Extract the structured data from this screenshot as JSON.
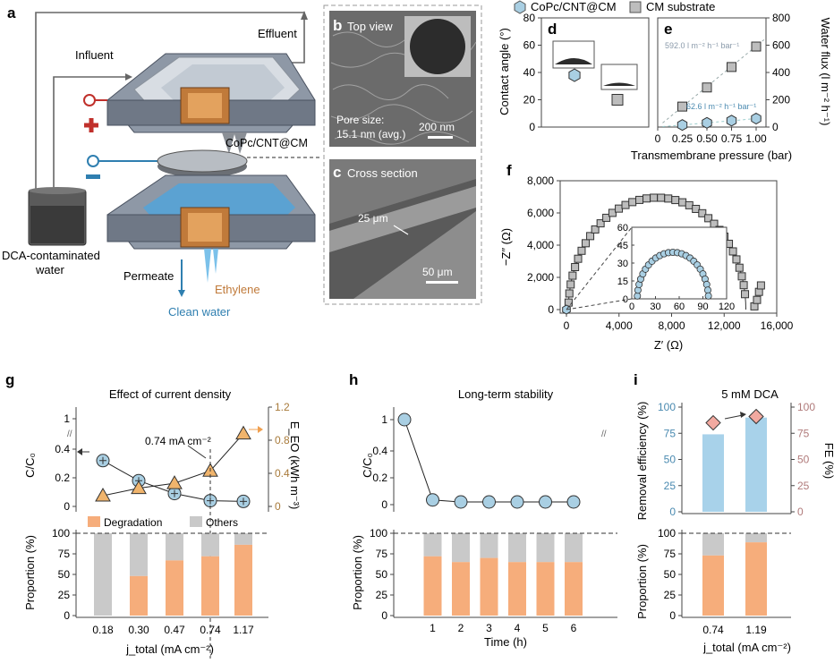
{
  "panels": {
    "a": {
      "letter": "a",
      "influent": "Influent",
      "effluent": "Effluent",
      "membrane": "CoPc/CNT@CM",
      "tank": "DCA-contaminated water",
      "tank_line1": "DCA-contaminated",
      "tank_line2": "water",
      "permeate": "Permeate",
      "ethylene": "Ethylene",
      "clean": "Clean water"
    },
    "b": {
      "letter": "b",
      "title": "Top view",
      "pore1": "Pore size:",
      "pore2": "15.1 nm (avg.)",
      "scale": "200 nm"
    },
    "c": {
      "letter": "c",
      "title": "Cross section",
      "thickness": "25 μm",
      "scale": "50 μm"
    },
    "d": {
      "letter": "d"
    },
    "e": {
      "letter": "e",
      "slope_high": "592.0 l m⁻² h⁻¹ bar⁻¹",
      "slope_low": "62.6 l m⁻² h⁻¹ bar⁻¹"
    },
    "f": {
      "letter": "f"
    },
    "g": {
      "letter": "g",
      "title": "Effect of current density",
      "annotation": "0.74 mA cm⁻²"
    },
    "h": {
      "letter": "h",
      "title": "Long-term stability"
    },
    "i": {
      "letter": "i",
      "title": "5 mM DCA"
    }
  },
  "legend_top": {
    "copc": "CoPc/CNT@CM",
    "cm": "CM substrate"
  },
  "legend_bottom": {
    "degradation": "Degradation",
    "others": "Others"
  },
  "colors": {
    "blue_marker": "#a9cfe3",
    "grey_marker": "#bdbdbd",
    "orange_bar": "#f6ad7b",
    "grey_bar": "#c9c9c9",
    "tan_marker": "#f0b46c",
    "pink_marker": "#f2a9a0",
    "light_blue_bar": "#a8d2ea"
  },
  "chart_data": [
    {
      "id": "d",
      "type": "scatter",
      "ylabel": "Contact angle (°)",
      "ylim": [
        0,
        80
      ],
      "yticks": [
        "0",
        "20",
        "40",
        "60",
        "80"
      ],
      "series": [
        {
          "name": "CoPc/CNT@CM",
          "values": [
            38
          ]
        },
        {
          "name": "CM substrate",
          "values": [
            20
          ]
        }
      ]
    },
    {
      "id": "e",
      "type": "scatter",
      "xlabel": "Transmembrane pressure (bar)",
      "ylabel": "Water flux (l m⁻² h⁻¹)",
      "xlim": [
        0,
        1.1
      ],
      "ylim": [
        0,
        800
      ],
      "xticks": [
        "0",
        "0.25",
        "0.50",
        "0.75",
        "1.00"
      ],
      "yticks": [
        "0",
        "200",
        "400",
        "600",
        "800"
      ],
      "series": [
        {
          "name": "CM substrate",
          "x": [
            0.25,
            0.5,
            0.75,
            1.0
          ],
          "y": [
            150,
            290,
            440,
            590
          ]
        },
        {
          "name": "CoPc/CNT@CM",
          "x": [
            0.25,
            0.5,
            0.75,
            1.0
          ],
          "y": [
            15,
            31,
            47,
            62
          ]
        }
      ]
    },
    {
      "id": "f",
      "type": "scatter",
      "xlabel": "Z′ (Ω)",
      "ylabel": "−Z″ (Ω)",
      "xlim": [
        0,
        16000
      ],
      "ylim": [
        0,
        8000
      ],
      "xticks": [
        "0",
        "4,000",
        "8,000",
        "12,000",
        "16,000"
      ],
      "yticks": [
        "0",
        "2,000",
        "4,000",
        "6,000",
        "8,000"
      ],
      "inset": {
        "xticks": [
          "0",
          "30",
          "60",
          "90",
          "120"
        ],
        "yticks": [
          "0",
          "15",
          "30",
          "45",
          "60"
        ],
        "xlim": [
          0,
          120
        ],
        "ylim": [
          0,
          60
        ]
      }
    },
    {
      "id": "g",
      "type": "line",
      "categories": [
        "0.18",
        "0.30",
        "0.47",
        "0.74",
        "1.17"
      ],
      "xlabel": "j_total (mA cm⁻²)",
      "ylabel_top": "C/C₀",
      "ylabel_right": "E_EO (kWh m⁻³)",
      "ylabel_bottom": "Proportion (%)",
      "yticks_top": [
        "0",
        "0.2",
        "0.4",
        "1"
      ],
      "yticks_right": [
        "0",
        "0.4",
        "0.8",
        "1.2"
      ],
      "yticks_bottom": [
        "0",
        "25",
        "50",
        "75",
        "100"
      ],
      "series": [
        {
          "name": "C/C0",
          "values": [
            0.32,
            0.18,
            0.09,
            0.04,
            0.035
          ]
        },
        {
          "name": "EEO",
          "values": [
            0.13,
            0.22,
            0.28,
            0.43,
            0.88
          ]
        },
        {
          "name": "Degradation",
          "values": [
            0,
            48,
            67,
            72,
            86
          ]
        }
      ]
    },
    {
      "id": "h",
      "type": "line",
      "categories": [
        "0",
        "1",
        "2",
        "3",
        "4",
        "5",
        "6"
      ],
      "xlabel": "Time (h)",
      "ylabel_top": "C/C₀",
      "ylabel_bottom": "Proportion (%)",
      "yticks_top": [
        "0",
        "0.2",
        "0.4",
        "1"
      ],
      "yticks_bottom": [
        "0",
        "25",
        "50",
        "75",
        "100"
      ],
      "series": [
        {
          "name": "C/C0",
          "values": [
            1.0,
            0.035,
            0.02,
            0.02,
            0.02,
            0.02,
            0.02
          ]
        },
        {
          "name": "Degradation",
          "values": [
            null,
            72,
            65,
            70,
            65,
            65,
            65
          ]
        }
      ]
    },
    {
      "id": "i",
      "type": "bar",
      "categories": [
        "0.74",
        "1.19"
      ],
      "xlabel": "j_total (mA cm⁻²)",
      "ylabel_top": "Removal efficiency (%)",
      "ylabel_right": "FE (%)",
      "ylabel_bottom": "Proportion (%)",
      "yticks_top": [
        "0",
        "25",
        "50",
        "75",
        "100"
      ],
      "yticks_bottom": [
        "0",
        "25",
        "50",
        "75",
        "100"
      ],
      "series": [
        {
          "name": "Removal efficiency",
          "values": [
            74,
            90
          ]
        },
        {
          "name": "FE",
          "values": [
            85,
            91
          ]
        },
        {
          "name": "Degradation",
          "values": [
            73,
            89
          ]
        }
      ]
    }
  ]
}
